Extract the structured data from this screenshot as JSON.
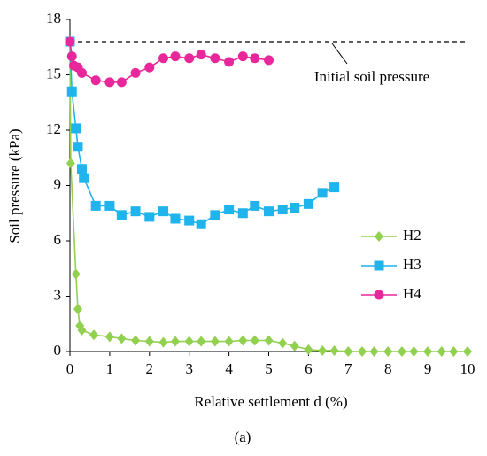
{
  "chart_data": {
    "type": "line",
    "xlabel": "Relative settlement d (%)",
    "ylabel": "Soil pressure (kPa)",
    "caption": "(a)",
    "xlim": [
      0,
      10
    ],
    "xticks": [
      0,
      1,
      2,
      3,
      4,
      5,
      6,
      7,
      8,
      9,
      10
    ],
    "ylim": [
      0,
      18
    ],
    "yticks": [
      0,
      3,
      6,
      9,
      12,
      15,
      18
    ],
    "reference_line": {
      "value": 16.8,
      "label": "Initial soil pressure"
    },
    "legend": "right",
    "series": [
      {
        "name": "H2",
        "color": "#92d050",
        "marker": "diamond",
        "x": [
          0,
          0.02,
          0.15,
          0.2,
          0.25,
          0.3,
          0.6,
          1,
          1.3,
          1.65,
          2,
          2.35,
          2.65,
          3,
          3.3,
          3.65,
          4,
          4.35,
          4.65,
          5,
          5.35,
          5.65,
          6,
          6.35,
          6.65,
          7,
          7.35,
          7.65,
          8,
          8.35,
          8.65,
          9,
          9.35,
          9.65,
          10
        ],
        "values": [
          16.8,
          10.2,
          4.2,
          2.3,
          1.4,
          1.15,
          0.9,
          0.8,
          0.7,
          0.6,
          0.55,
          0.5,
          0.55,
          0.55,
          0.55,
          0.55,
          0.55,
          0.6,
          0.6,
          0.6,
          0.45,
          0.3,
          0.1,
          0.05,
          0.05,
          0,
          0,
          0,
          0,
          0,
          0,
          0,
          0,
          0,
          0
        ]
      },
      {
        "name": "H3",
        "color": "#1fb4ec",
        "marker": "square",
        "x": [
          0,
          0.05,
          0.15,
          0.2,
          0.3,
          0.35,
          0.65,
          1,
          1.3,
          1.65,
          2,
          2.35,
          2.65,
          3,
          3.3,
          3.65,
          4,
          4.35,
          4.65,
          5,
          5.35,
          5.65,
          6,
          6.35,
          6.65
        ],
        "values": [
          16.8,
          14.1,
          12.1,
          11.1,
          9.9,
          9.4,
          7.9,
          7.9,
          7.4,
          7.6,
          7.3,
          7.6,
          7.2,
          7.1,
          6.9,
          7.4,
          7.7,
          7.5,
          7.9,
          7.6,
          7.7,
          7.8,
          8.0,
          8.6,
          8.9
        ]
      },
      {
        "name": "H4",
        "color": "#e8279a",
        "marker": "circle",
        "x": [
          0,
          0.05,
          0.1,
          0.2,
          0.3,
          0.65,
          1,
          1.3,
          1.65,
          2,
          2.35,
          2.65,
          3,
          3.3,
          3.65,
          4,
          4.35,
          4.65,
          5
        ],
        "values": [
          16.8,
          16.0,
          15.5,
          15.4,
          15.1,
          14.7,
          14.6,
          14.6,
          15.1,
          15.4,
          15.9,
          16.0,
          15.9,
          16.1,
          15.9,
          15.7,
          16.0,
          15.9,
          15.8
        ]
      }
    ]
  }
}
